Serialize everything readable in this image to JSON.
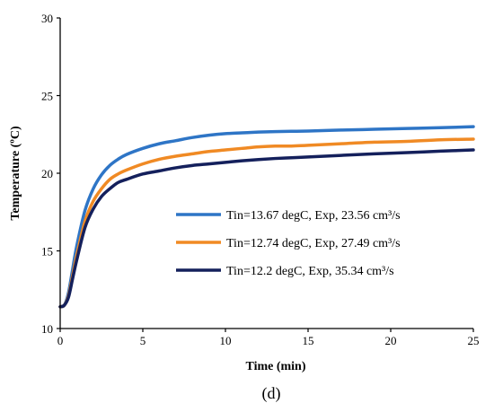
{
  "chart_data": {
    "type": "line",
    "xlabel": "Time (min)",
    "ylabel": "Temperature (ºC)",
    "xlim": [
      0,
      25
    ],
    "ylim": [
      10,
      30
    ],
    "xticks": [
      "0",
      "5",
      "10",
      "15",
      "20",
      "25"
    ],
    "yticks": [
      "10",
      "15",
      "20",
      "25",
      "30"
    ],
    "grid": false,
    "legend": "center-right",
    "panel_label": "(d)",
    "series": [
      {
        "name": "Tin=13.67 degC, Exp, 23.56 cm³/s",
        "color": "#2e75c6",
        "x": [
          0,
          0.25,
          0.5,
          0.75,
          1,
          1.5,
          2,
          2.5,
          3,
          3.5,
          4,
          5,
          6,
          7,
          8,
          9,
          10,
          11,
          12,
          13,
          14,
          15,
          17,
          19,
          21,
          23,
          25
        ],
        "y": [
          11.4,
          11.5,
          12.3,
          13.8,
          15.3,
          17.6,
          19.0,
          19.9,
          20.5,
          20.9,
          21.2,
          21.6,
          21.9,
          22.1,
          22.3,
          22.45,
          22.55,
          22.6,
          22.65,
          22.68,
          22.7,
          22.72,
          22.78,
          22.83,
          22.88,
          22.93,
          23.0
        ]
      },
      {
        "name": "Tin=12.74 degC, Exp, 27.49 cm³/s",
        "color": "#f08a24",
        "x": [
          0,
          0.25,
          0.5,
          0.75,
          1,
          1.5,
          2,
          2.5,
          3,
          3.5,
          4,
          5,
          6,
          7,
          8,
          9,
          10,
          11,
          12,
          13,
          14,
          15,
          17,
          19,
          21,
          23,
          25
        ],
        "y": [
          11.4,
          11.5,
          12.1,
          13.4,
          14.7,
          16.9,
          18.2,
          19.0,
          19.6,
          19.95,
          20.2,
          20.6,
          20.9,
          21.1,
          21.25,
          21.4,
          21.5,
          21.6,
          21.7,
          21.75,
          21.75,
          21.8,
          21.9,
          22.0,
          22.05,
          22.15,
          22.2
        ]
      },
      {
        "name": "Tin=12.2 degC, Exp, 35.34 cm³/s",
        "color": "#14205c",
        "x": [
          0,
          0.25,
          0.5,
          0.75,
          1,
          1.5,
          2,
          2.5,
          3,
          3.5,
          4,
          5,
          6,
          7,
          8,
          9,
          10,
          11,
          12,
          13,
          14,
          15,
          17,
          19,
          21,
          23,
          25
        ],
        "y": [
          11.4,
          11.5,
          12.0,
          13.2,
          14.4,
          16.5,
          17.7,
          18.5,
          19.0,
          19.4,
          19.6,
          19.95,
          20.15,
          20.35,
          20.5,
          20.6,
          20.7,
          20.8,
          20.88,
          20.95,
          21.0,
          21.05,
          21.15,
          21.25,
          21.33,
          21.42,
          21.5
        ]
      }
    ]
  }
}
